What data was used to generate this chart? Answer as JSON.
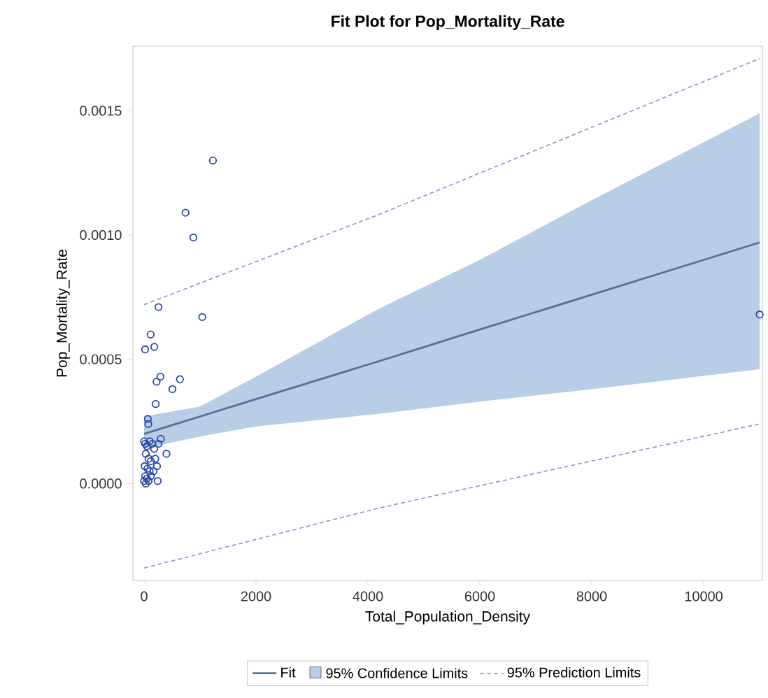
{
  "chart_data": {
    "type": "scatter",
    "title": "Fit Plot for Pop_Mortality_Rate",
    "xlabel": "Total_Population_Density",
    "ylabel": "Pop_Mortality_Rate",
    "xlim": [
      -200,
      11050
    ],
    "ylim": [
      -0.00039,
      0.00176
    ],
    "xticks": [
      0,
      2000,
      4000,
      6000,
      8000,
      10000
    ],
    "yticks": [
      {
        "value": 0,
        "label": "0.0000"
      },
      {
        "value": 0.0005,
        "label": "0.0005"
      },
      {
        "value": 0.001,
        "label": "0.0010"
      },
      {
        "value": 0.0015,
        "label": "0.0015"
      }
    ],
    "legend": "bottom",
    "grid": false,
    "annotations": [
      "95% Confidence Limits"
    ],
    "series": [
      {
        "name": "95% Prediction Limits",
        "type": "line",
        "line_style": "dashed",
        "marker": "none",
        "color": "#8e8fd6",
        "x": [
          0,
          4165,
          11000
        ],
        "values": [
          0.00072,
          0.00108,
          0.00171
        ]
      },
      {
        "type": "line",
        "line_style": "dashed",
        "marker": "none",
        "color": "#8e8fd6",
        "x": [
          0,
          4165,
          11000
        ],
        "values": [
          -0.00034,
          -0.0001,
          0.00024
        ]
      },
      {
        "name": "Fit",
        "type": "line",
        "line_style": "solid",
        "marker": "none",
        "color": "#5d6f94",
        "x": [
          0,
          1000,
          2000,
          4165,
          6000,
          8000,
          11000
        ],
        "values": [
          0.0002,
          0.00027,
          0.00034,
          0.00049,
          0.00062,
          0.00076,
          0.00097
        ],
        "lower": [
          0.00014,
          0.00019,
          0.00023,
          0.00028,
          0.00033,
          0.00038,
          0.00046
        ],
        "upper": [
          0.00027,
          0.00031,
          0.00043,
          0.0007,
          0.0009,
          0.00114,
          0.00149
        ]
      },
      {
        "marker": "circle",
        "color": "#2a46a6",
        "x": [
          1230,
          740,
          880,
          257,
          1040,
          117,
          17,
          182,
          291,
          224,
          640,
          506,
          207,
          67,
          75,
          400,
          242,
          299,
          257,
          0,
          20,
          50,
          100,
          150,
          30,
          80,
          120,
          200,
          10,
          60,
          100,
          170,
          20,
          50,
          0,
          30,
          80,
          120,
          230,
          180,
          11000
        ],
        "values": [
          0.0013,
          0.00109,
          0.00099,
          0.00071,
          0.00067,
          0.0006,
          0.00054,
          0.00055,
          0.00043,
          0.00041,
          0.00042,
          0.00038,
          0.00032,
          0.00026,
          0.00024,
          0.00012,
          1e-05,
          0.00018,
          0.00016,
          0.00017,
          0.00016,
          0.00015,
          0.00017,
          0.00016,
          0.00012,
          0.0001,
          9e-05,
          0.0001,
          7e-05,
          6e-05,
          5e-05,
          5e-05,
          3e-05,
          2e-05,
          1e-05,
          0,
          1e-05,
          3e-05,
          7e-05,
          0.00014,
          0.00068
        ]
      }
    ]
  }
}
